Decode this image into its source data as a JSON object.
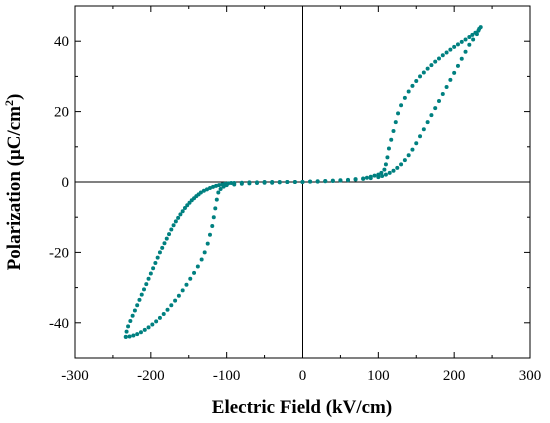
{
  "chart_data": {
    "type": "scatter",
    "xlabel": "Electric Field (kV/cm)",
    "ylabel_main": "Polarization (μC/cm",
    "ylabel_sup": "2",
    "ylabel_close": ")",
    "xlim": [
      -300,
      300
    ],
    "ylim": [
      -50,
      50
    ],
    "xticks": [
      -300,
      -200,
      -100,
      0,
      100,
      200,
      300
    ],
    "xtick_labels": [
      "-300",
      "-200",
      "-100",
      "0",
      "100",
      "200",
      "300"
    ],
    "yticks": [
      -40,
      -20,
      0,
      20,
      40
    ],
    "ytick_labels": [
      "-40",
      "-20",
      "0",
      "20",
      "40"
    ],
    "reference_lines": {
      "x": 0,
      "y": 0
    },
    "grid": false,
    "point_color": "#008080",
    "series": [
      {
        "points": [
          [
            -233,
            -44
          ],
          [
            -232,
            -42.5
          ],
          [
            -230,
            -41
          ],
          [
            -227,
            -39.5
          ],
          [
            -224,
            -38
          ],
          [
            -221,
            -36.5
          ],
          [
            -218,
            -35
          ],
          [
            -215,
            -33.5
          ],
          [
            -212,
            -32
          ],
          [
            -209,
            -30.5
          ],
          [
            -206,
            -29
          ],
          [
            -203,
            -27.5
          ],
          [
            -200,
            -26
          ],
          [
            -197,
            -24.5
          ],
          [
            -194,
            -23
          ],
          [
            -191,
            -21.5
          ],
          [
            -188,
            -20
          ],
          [
            -185,
            -18.7
          ],
          [
            -182,
            -17.4
          ],
          [
            -179,
            -16.1
          ],
          [
            -176,
            -14.8
          ],
          [
            -173,
            -13.5
          ],
          [
            -170,
            -12.3
          ],
          [
            -167,
            -11.2
          ],
          [
            -164,
            -10.2
          ],
          [
            -161,
            -9.2
          ],
          [
            -158,
            -8.3
          ],
          [
            -155,
            -7.4
          ],
          [
            -152,
            -6.6
          ],
          [
            -149,
            -5.9
          ],
          [
            -146,
            -5.2
          ],
          [
            -143,
            -4.6
          ],
          [
            -140,
            -4
          ],
          [
            -137,
            -3.5
          ],
          [
            -134,
            -3
          ],
          [
            -130,
            -2.5
          ],
          [
            -126,
            -2.1
          ],
          [
            -122,
            -1.7
          ],
          [
            -118,
            -1.4
          ],
          [
            -114,
            -1.1
          ],
          [
            -110,
            -0.9
          ],
          [
            -106,
            -0.7
          ],
          [
            -102,
            -0.5
          ],
          [
            -98,
            -0.4
          ],
          [
            -94,
            -0.3
          ],
          [
            -90,
            -0.3
          ],
          [
            -80,
            -0.2
          ],
          [
            -70,
            -0.1
          ],
          [
            -60,
            -0.1
          ],
          [
            -50,
            0
          ],
          [
            -40,
            0
          ],
          [
            -30,
            0
          ],
          [
            -20,
            0
          ],
          [
            -10,
            0
          ],
          [
            0,
            0
          ],
          [
            10,
            0.1
          ],
          [
            20,
            0.1
          ],
          [
            30,
            0.2
          ],
          [
            40,
            0.3
          ],
          [
            50,
            0.4
          ],
          [
            60,
            0.5
          ],
          [
            70,
            0.7
          ],
          [
            80,
            0.9
          ],
          [
            90,
            1.1
          ],
          [
            100,
            1.4
          ],
          [
            105,
            1.7
          ],
          [
            110,
            2.1
          ],
          [
            115,
            2.6
          ],
          [
            120,
            3.2
          ],
          [
            125,
            4
          ],
          [
            130,
            5
          ],
          [
            135,
            6.2
          ],
          [
            140,
            7.6
          ],
          [
            145,
            9.2
          ],
          [
            150,
            11
          ],
          [
            155,
            13
          ],
          [
            160,
            15
          ],
          [
            165,
            17
          ],
          [
            170,
            19
          ],
          [
            175,
            21
          ],
          [
            180,
            23
          ],
          [
            185,
            25
          ],
          [
            190,
            27
          ],
          [
            195,
            29
          ],
          [
            200,
            31
          ],
          [
            205,
            33
          ],
          [
            210,
            35
          ],
          [
            215,
            37
          ],
          [
            220,
            39
          ],
          [
            225,
            40.5
          ],
          [
            230,
            42
          ],
          [
            233,
            43.5
          ],
          [
            235,
            44
          ],
          [
            232,
            43
          ],
          [
            228,
            42.4
          ],
          [
            224,
            41.8
          ],
          [
            220,
            41.2
          ],
          [
            215,
            40.5
          ],
          [
            210,
            39.8
          ],
          [
            205,
            39.1
          ],
          [
            200,
            38.4
          ],
          [
            195,
            37.6
          ],
          [
            190,
            36.8
          ],
          [
            185,
            36
          ],
          [
            180,
            35.1
          ],
          [
            175,
            34.2
          ],
          [
            170,
            33.2
          ],
          [
            165,
            32.2
          ],
          [
            160,
            31.1
          ],
          [
            155,
            30
          ],
          [
            150,
            28.7
          ],
          [
            145,
            27.3
          ],
          [
            140,
            25.7
          ],
          [
            135,
            23.9
          ],
          [
            130,
            21.8
          ],
          [
            126,
            19.5
          ],
          [
            123,
            17
          ],
          [
            120,
            14.5
          ],
          [
            117,
            12
          ],
          [
            114,
            9.5
          ],
          [
            112,
            7
          ],
          [
            110,
            5
          ],
          [
            108,
            3.5
          ],
          [
            104,
            2.6
          ],
          [
            100,
            2.1
          ],
          [
            95,
            1.8
          ],
          [
            90,
            1.5
          ],
          [
            85,
            1.2
          ],
          [
            80,
            1
          ],
          [
            70,
            0.8
          ],
          [
            60,
            0.6
          ],
          [
            50,
            0.5
          ],
          [
            40,
            0.4
          ],
          [
            30,
            0.3
          ],
          [
            20,
            0.2
          ],
          [
            10,
            0.1
          ],
          [
            0,
            0
          ],
          [
            -10,
            0
          ],
          [
            -20,
            0
          ],
          [
            -30,
            -0.1
          ],
          [
            -40,
            -0.2
          ],
          [
            -50,
            -0.2
          ],
          [
            -60,
            -0.3
          ],
          [
            -70,
            -0.4
          ],
          [
            -80,
            -0.5
          ],
          [
            -90,
            -0.7
          ],
          [
            -100,
            -0.9
          ],
          [
            -104,
            -1.3
          ],
          [
            -108,
            -2
          ],
          [
            -111,
            -3
          ],
          [
            -113,
            -5
          ],
          [
            -115,
            -7.5
          ],
          [
            -117,
            -10
          ],
          [
            -119,
            -12.5
          ],
          [
            -122,
            -15
          ],
          [
            -125,
            -17.5
          ],
          [
            -129,
            -20
          ],
          [
            -133,
            -22
          ],
          [
            -138,
            -24
          ],
          [
            -143,
            -25.8
          ],
          [
            -148,
            -27.5
          ],
          [
            -153,
            -29.2
          ],
          [
            -158,
            -30.8
          ],
          [
            -163,
            -32.3
          ],
          [
            -168,
            -33.7
          ],
          [
            -173,
            -35
          ],
          [
            -178,
            -36.3
          ],
          [
            -183,
            -37.5
          ],
          [
            -188,
            -38.6
          ],
          [
            -193,
            -39.6
          ],
          [
            -198,
            -40.5
          ],
          [
            -203,
            -41.3
          ],
          [
            -208,
            -42
          ],
          [
            -213,
            -42.7
          ],
          [
            -218,
            -43.2
          ],
          [
            -223,
            -43.6
          ],
          [
            -228,
            -43.9
          ],
          [
            -233,
            -44
          ]
        ]
      }
    ]
  }
}
